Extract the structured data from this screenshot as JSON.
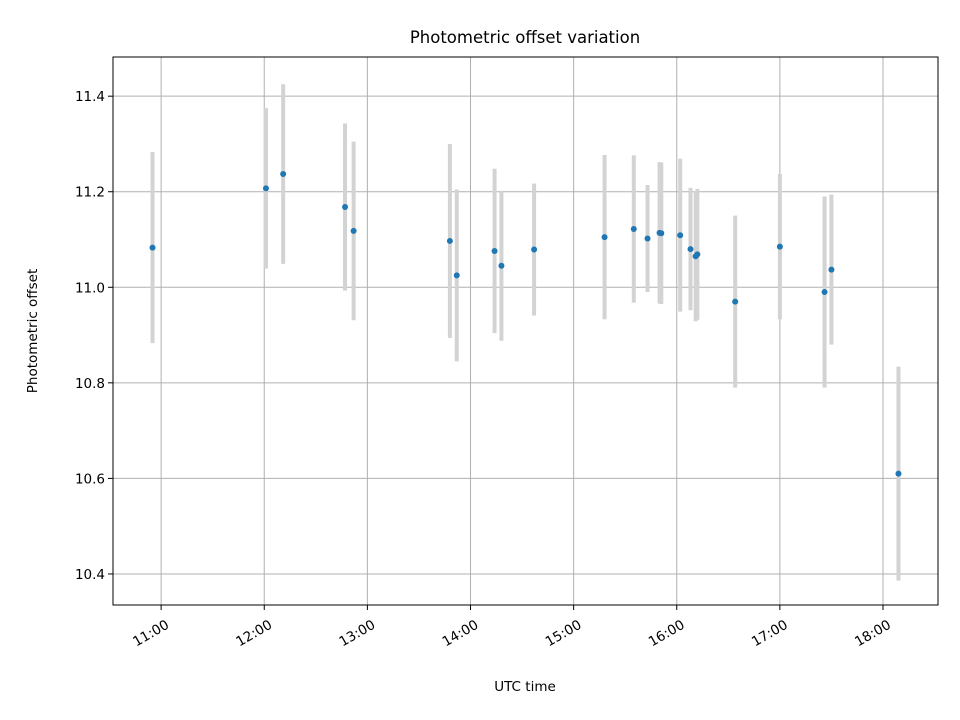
{
  "chart_data": {
    "type": "scatter",
    "title": "Photometric offset variation",
    "xlabel": "UTC time",
    "ylabel": "Photometric offset",
    "x_unit": "UTC hours",
    "xlim": [
      "10:32",
      "18:32"
    ],
    "ylim": [
      10.335,
      11.482
    ],
    "x_ticks": [
      "11:00",
      "12:00",
      "13:00",
      "14:00",
      "15:00",
      "16:00",
      "17:00",
      "18:00"
    ],
    "y_ticks": [
      "10.4",
      "10.6",
      "10.8",
      "11.0",
      "11.2",
      "11.4"
    ],
    "grid": true,
    "legend": "none",
    "colors": {
      "points": "#1f77b4",
      "error_bars": "#d3d3d3",
      "grid": "#b0b0b0"
    },
    "points": [
      {
        "time": "10:55",
        "y": 11.083,
        "err": 0.2
      },
      {
        "time": "12:01",
        "y": 11.207,
        "err": 0.168
      },
      {
        "time": "12:11",
        "y": 11.237,
        "err": 0.188
      },
      {
        "time": "12:47",
        "y": 11.168,
        "err": 0.175
      },
      {
        "time": "12:52",
        "y": 11.118,
        "err": 0.187
      },
      {
        "time": "13:48",
        "y": 11.097,
        "err": 0.203
      },
      {
        "time": "13:52",
        "y": 11.025,
        "err": 0.18
      },
      {
        "time": "14:14",
        "y": 11.076,
        "err": 0.172
      },
      {
        "time": "14:18",
        "y": 11.045,
        "err": 0.157
      },
      {
        "time": "14:37",
        "y": 11.079,
        "err": 0.138
      },
      {
        "time": "15:18",
        "y": 11.105,
        "err": 0.172
      },
      {
        "time": "15:35",
        "y": 11.122,
        "err": 0.154
      },
      {
        "time": "15:43",
        "y": 11.102,
        "err": 0.112
      },
      {
        "time": "15:50",
        "y": 11.114,
        "err": 0.148
      },
      {
        "time": "15:51",
        "y": 11.113,
        "err": 0.148
      },
      {
        "time": "16:02",
        "y": 11.109,
        "err": 0.16
      },
      {
        "time": "16:08",
        "y": 11.08,
        "err": 0.128
      },
      {
        "time": "16:11",
        "y": 11.065,
        "err": 0.136
      },
      {
        "time": "16:12",
        "y": 11.069,
        "err": 0.137
      },
      {
        "time": "16:34",
        "y": 10.97,
        "err": 0.18
      },
      {
        "time": "17:00",
        "y": 11.085,
        "err": 0.152
      },
      {
        "time": "17:26",
        "y": 10.99,
        "err": 0.2
      },
      {
        "time": "17:30",
        "y": 11.037,
        "err": 0.157
      },
      {
        "time": "18:09",
        "y": 10.61,
        "err": 0.224
      }
    ]
  }
}
